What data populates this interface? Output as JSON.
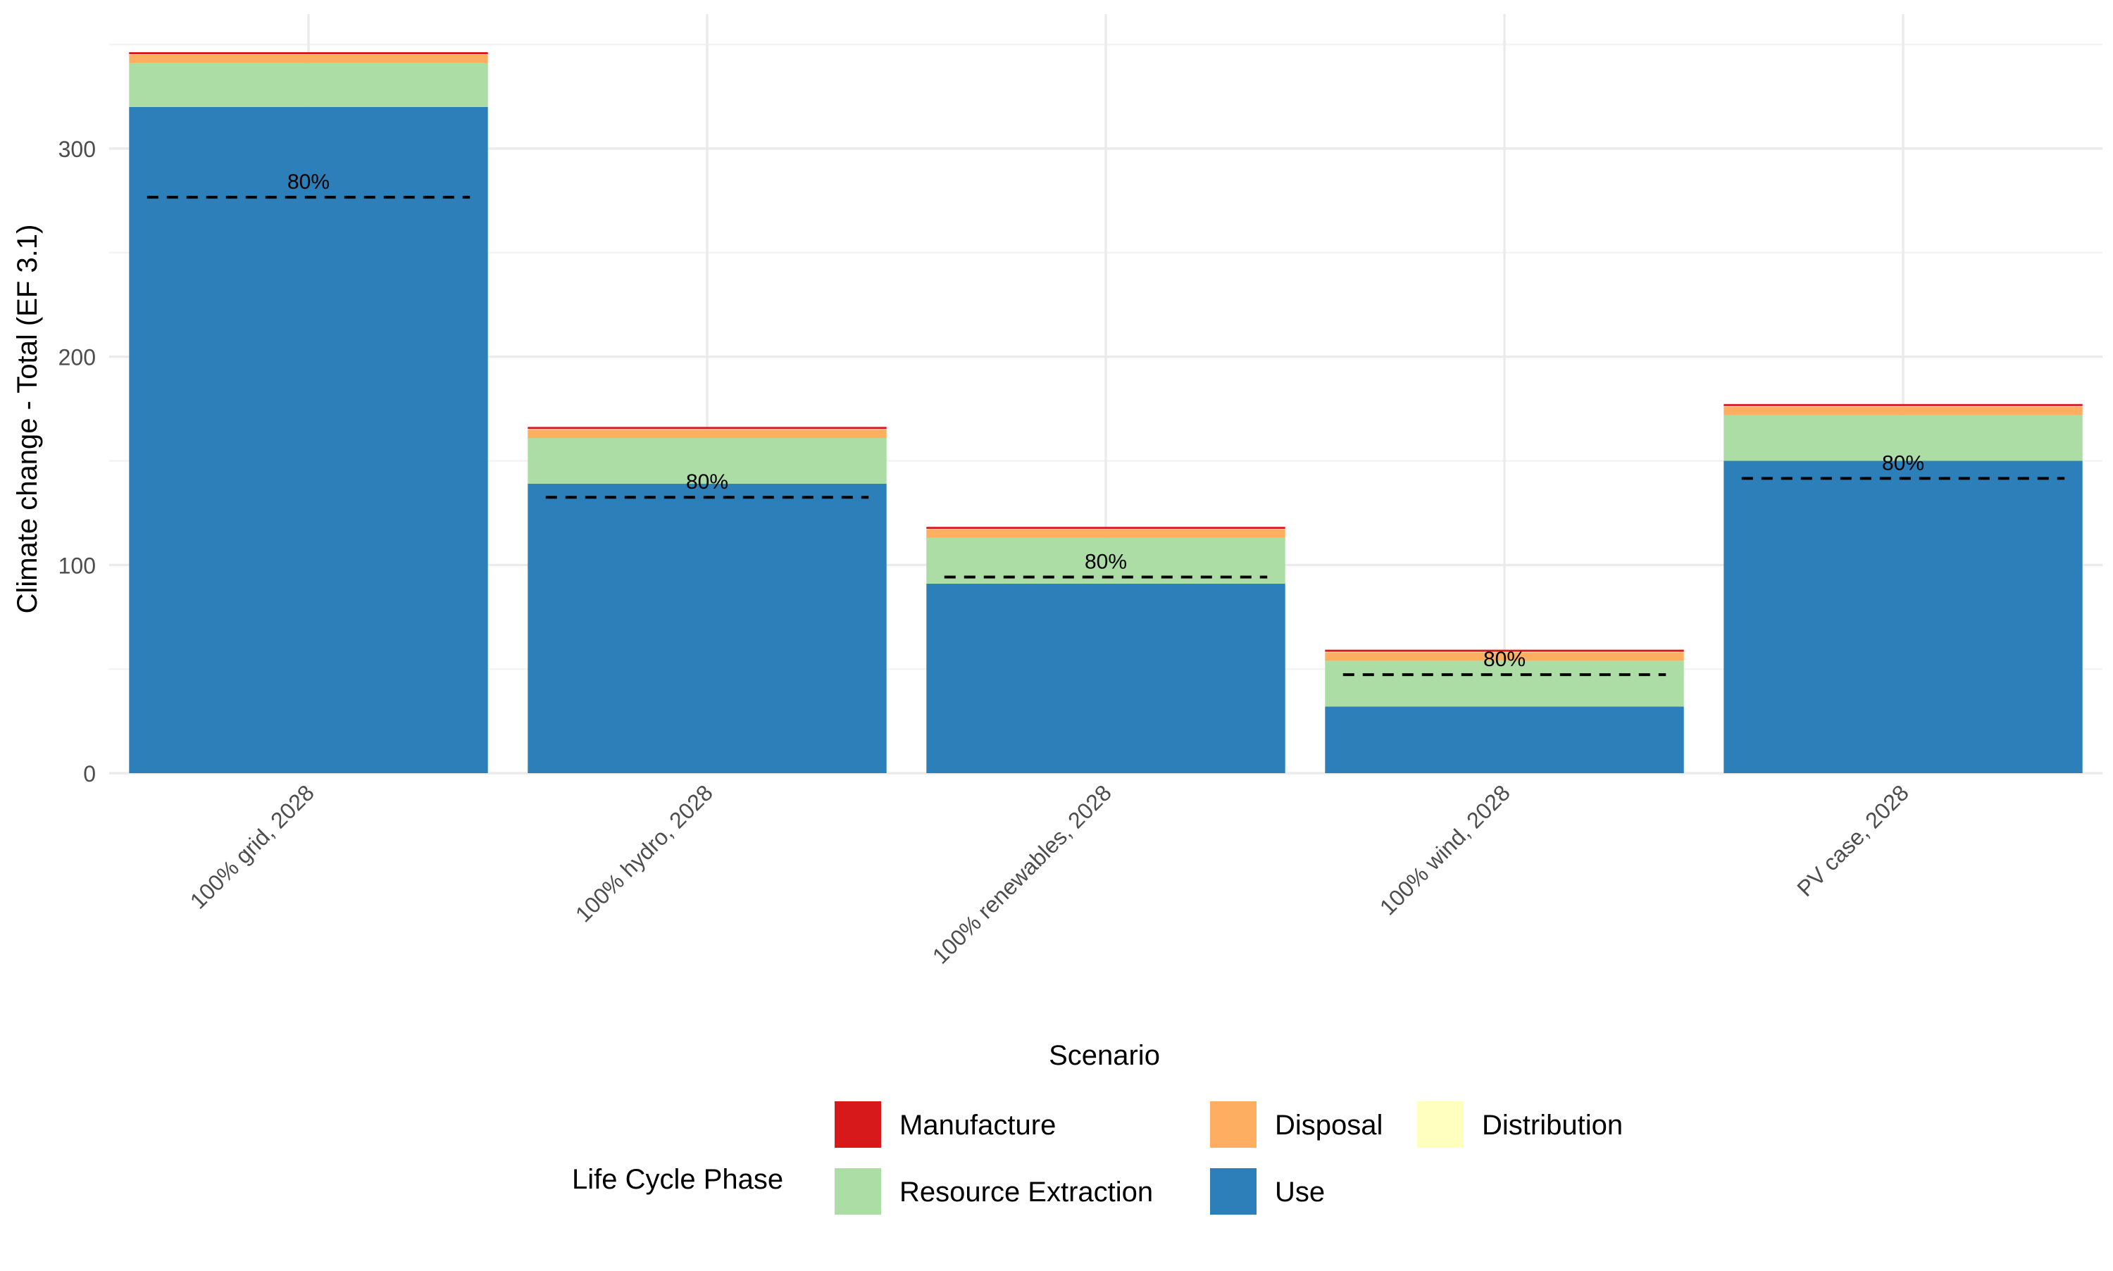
{
  "chart_data": {
    "type": "bar",
    "stacked": true,
    "title": "",
    "xlabel": "Scenario",
    "ylabel": "Climate change - Total (EF 3.1)",
    "categories": [
      "100% grid, 2028",
      "100% hydro, 2028",
      "100% renewables, 2028",
      "100% wind, 2028",
      "PV case, 2028"
    ],
    "ylim": [
      0,
      350
    ],
    "yticks": [
      0,
      100,
      200,
      300
    ],
    "grid": true,
    "series": [
      {
        "name": "Use",
        "color": "#2c7fb8",
        "values": [
          320,
          139,
          91,
          32,
          150
        ]
      },
      {
        "name": "Resource Extraction",
        "color": "#abdda4",
        "values": [
          21,
          22,
          22,
          22,
          22
        ]
      },
      {
        "name": "Disposal",
        "color": "#fdae61",
        "values": [
          4,
          4,
          4,
          4,
          4
        ]
      },
      {
        "name": "Distribution",
        "color": "#ffffbf",
        "values": [
          0.3,
          0.3,
          0.3,
          0.3,
          0.3
        ]
      },
      {
        "name": "Manufacture",
        "color": "#d7191c",
        "values": [
          1,
          1,
          1,
          1,
          1
        ]
      }
    ],
    "threshold": {
      "label": "80%",
      "values": [
        276.6,
        132.5,
        94.2,
        47.3,
        141.6
      ]
    },
    "legend": {
      "title": "Life Cycle Phase",
      "placement": "bottom",
      "entries": [
        {
          "name": "Manufacture",
          "color": "#d7191c"
        },
        {
          "name": "Disposal",
          "color": "#fdae61"
        },
        {
          "name": "Distribution",
          "color": "#ffffbf"
        },
        {
          "name": "Resource Extraction",
          "color": "#abdda4"
        },
        {
          "name": "Use",
          "color": "#2c7fb8"
        }
      ]
    }
  }
}
